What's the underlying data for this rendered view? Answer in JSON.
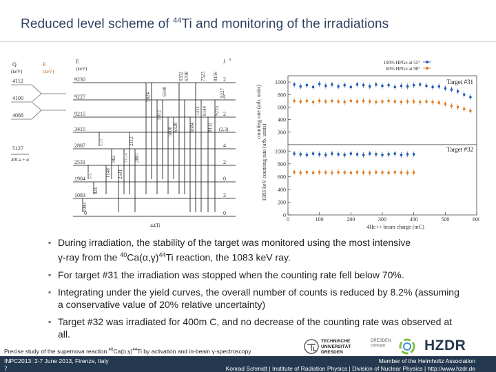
{
  "slide": {
    "title_before": "Reduced level scheme of ",
    "title_mass": "44",
    "title_after": "Ti and monitoring of the irradiations"
  },
  "level_scheme": {
    "col_headers": [
      "Q",
      "(keV)",
      "E",
      "(keV)",
      "E",
      "(keV)",
      "J",
      "π"
    ],
    "q_values": [
      "4112",
      "4100",
      "4088"
    ],
    "final_levels": [
      "9230",
      "9227",
      "9215",
      "3415",
      "2887",
      "2531",
      "1904",
      "1083",
      "0"
    ],
    "spins": [
      "2",
      "1",
      "2",
      "(2,3)",
      "4",
      "2",
      "0",
      "2",
      "0"
    ],
    "transitions": [
      "5824",
      "5812",
      "5800",
      "6340",
      "6328",
      "6352",
      "6708",
      "6684",
      "7311",
      "7323",
      "8144",
      "8132",
      "8156",
      "9215",
      "9227",
      "2112",
      "1834",
      "982",
      "629",
      "1148",
      "2531",
      "2887",
      "821",
      "687",
      "1083"
    ],
    "threshold": "5127",
    "reaction": "40Ca + α",
    "nucleus": "44Ti"
  },
  "monitoring": {
    "legend": [
      "100% HPGe at 55°",
      "60% HPGe at 90°"
    ],
    "target_top": "Target #31",
    "target_bottom": "Target #32",
    "y_ticks_top": [
      "1000",
      "800",
      "600",
      "400",
      "200"
    ],
    "y_ticks_bottom": [
      "1000",
      "800",
      "600",
      "400",
      "200",
      "0"
    ],
    "x_ticks": [
      "0",
      "100",
      "200",
      "300",
      "400",
      "500",
      "600"
    ],
    "ylabel_top": "counting rate (arb. units)",
    "ylabel_bottom": "1083 keV counting rate (arb. units)",
    "xlabel": "4He++ beam charge (mC)"
  },
  "chart_data": {
    "type": "scatter",
    "panels": [
      {
        "name": "Target #31",
        "ylim": [
          0,
          1100
        ],
        "xlim": [
          0,
          600
        ],
        "series": [
          {
            "name": "100% HPGe at 55°",
            "color": "#1f5ab5",
            "x": [
              20,
              40,
              60,
              80,
              100,
              120,
              140,
              160,
              180,
              200,
              220,
              240,
              260,
              280,
              300,
              320,
              340,
              360,
              380,
              400,
              420,
              440,
              460,
              480,
              500,
              520,
              540,
              560,
              580
            ],
            "y": [
              960,
              930,
              950,
              920,
              970,
              940,
              960,
              930,
              950,
              920,
              960,
              950,
              930,
              960,
              940,
              950,
              920,
              940,
              930,
              950,
              960,
              940,
              920,
              930,
              900,
              880,
              850,
              800,
              760
            ]
          },
          {
            "name": "60% HPGe at 90°",
            "color": "#e07a1f",
            "x": [
              20,
              40,
              60,
              80,
              100,
              120,
              140,
              160,
              180,
              200,
              220,
              240,
              260,
              280,
              300,
              320,
              340,
              360,
              380,
              400,
              420,
              440,
              460,
              480,
              500,
              520,
              540,
              560,
              580
            ],
            "y": [
              700,
              690,
              700,
              680,
              700,
              690,
              700,
              690,
              680,
              700,
              690,
              700,
              690,
              680,
              690,
              700,
              690,
              680,
              690,
              690,
              680,
              690,
              680,
              670,
              650,
              620,
              600,
              570,
              540
            ]
          }
        ]
      },
      {
        "name": "Target #32",
        "ylim": [
          0,
          1100
        ],
        "xlim": [
          0,
          600
        ],
        "series": [
          {
            "name": "100% HPGe at 55°",
            "color": "#1f5ab5",
            "x": [
              20,
              40,
              60,
              80,
              100,
              120,
              140,
              160,
              180,
              200,
              220,
              240,
              260,
              280,
              300,
              320,
              340,
              360,
              380,
              400
            ],
            "y": [
              960,
              950,
              940,
              960,
              950,
              940,
              960,
              950,
              940,
              960,
              950,
              940,
              960,
              950,
              940,
              950,
              960,
              940,
              950,
              950
            ]
          },
          {
            "name": "60% HPGe at 90°",
            "color": "#e07a1f",
            "x": [
              20,
              40,
              60,
              80,
              100,
              120,
              140,
              160,
              180,
              200,
              220,
              240,
              260,
              280,
              300,
              320,
              340,
              360,
              380,
              400
            ],
            "y": [
              670,
              660,
              670,
              660,
              670,
              665,
              660,
              670,
              665,
              660,
              670,
              665,
              660,
              670,
              665,
              660,
              670,
              665,
              660,
              665
            ]
          }
        ]
      }
    ]
  },
  "bullets": {
    "b1_a": "During irradiation, the stability of the target was monitored using the most intensive",
    "b1_b1": "γ-ray from the ",
    "b1_mass1": "40",
    "b1_b2": "Ca(α,γ)",
    "b1_mass2": "44",
    "b1_b3": "Ti reaction, the 1083 keV ray.",
    "b2": "For target #31 the irradiation was stopped when the counting rate fell below 70%.",
    "b3": "Integrating under the yield curves, the overall number of counts is reduced by 8.2% (assuming a conservative value of 20% relative uncertainty)",
    "b4": "Target #32 was irradiated for 400m C, and no decrease of the counting rate was observed at all."
  },
  "footer": {
    "study_a": "Precise study of the supernova reaction ",
    "study_mass1": "40",
    "study_b": "Ca(α,γ)",
    "study_mass2": "44",
    "study_c": "Ti by activation and in-beam γ-spectroscopy",
    "conf": "INPC2013: 2-7 June 2013, Firenze, Italy",
    "page": "7",
    "member": "Member of the Helmholtz Association",
    "author": "Konrad Schmidt | Institute of Radiation Physics | Division of Nuclear Physics | http://www.hzdr.de",
    "tu_line1": "TECHNISCHE",
    "tu_line2": "UNIVERSITÄT",
    "tu_line3": "DRESDEN",
    "dc_line1": "DRESDEN",
    "dc_line2": "concept",
    "hzdr": "HZDR"
  },
  "colors": {
    "dark_blue": "#24384f",
    "blue_series": "#1f5ab5",
    "orange_series": "#e07a1f"
  }
}
